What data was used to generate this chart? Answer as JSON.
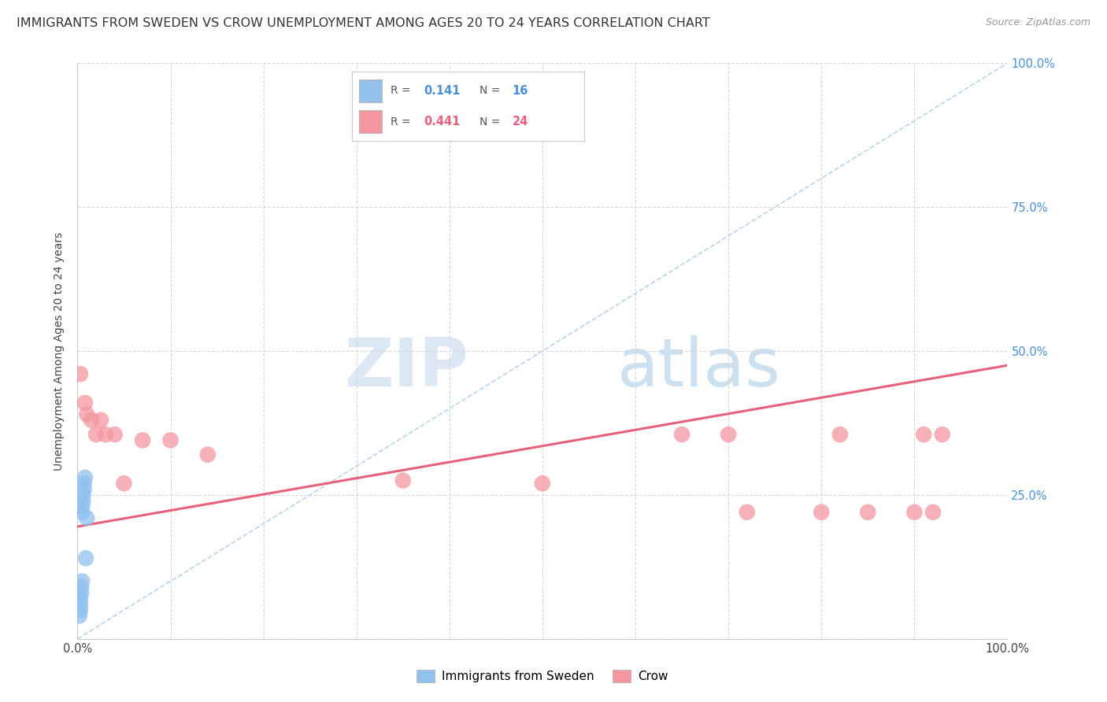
{
  "title": "IMMIGRANTS FROM SWEDEN VS CROW UNEMPLOYMENT AMONG AGES 20 TO 24 YEARS CORRELATION CHART",
  "source": "Source: ZipAtlas.com",
  "ylabel": "Unemployment Among Ages 20 to 24 years",
  "xlim": [
    0,
    1.0
  ],
  "ylim": [
    0,
    1.0
  ],
  "xtick_positions": [
    0.0,
    0.1,
    0.2,
    0.3,
    0.4,
    0.5,
    0.6,
    0.7,
    0.8,
    0.9,
    1.0
  ],
  "xticklabels": [
    "0.0%",
    "",
    "",
    "",
    "",
    "",
    "",
    "",
    "",
    "",
    "100.0%"
  ],
  "ytick_positions": [
    0.0,
    0.25,
    0.5,
    0.75,
    1.0
  ],
  "yticklabels_right": [
    "",
    "25.0%",
    "50.0%",
    "75.0%",
    "100.0%"
  ],
  "background_color": "#ffffff",
  "grid_color": "#d8d8d8",
  "watermark_zip": "ZIP",
  "watermark_atlas": "atlas",
  "blue_scatter_color": "#92C1EE",
  "pink_scatter_color": "#F496A0",
  "blue_line_color": "#4A90D9",
  "pink_line_color": "#E8607A",
  "blue_dashed_color": "#B8D4EE",
  "right_tick_color": "#4A90D9",
  "sweden_points_x": [
    0.002,
    0.003,
    0.003,
    0.003,
    0.004,
    0.004,
    0.005,
    0.005,
    0.005,
    0.006,
    0.006,
    0.007,
    0.007,
    0.008,
    0.009,
    0.01
  ],
  "sweden_points_y": [
    0.04,
    0.05,
    0.06,
    0.07,
    0.08,
    0.09,
    0.1,
    0.22,
    0.23,
    0.24,
    0.25,
    0.26,
    0.27,
    0.28,
    0.14,
    0.21
  ],
  "crow_points_x": [
    0.003,
    0.008,
    0.01,
    0.015,
    0.02,
    0.025,
    0.03,
    0.04,
    0.05,
    0.07,
    0.1,
    0.14,
    0.35,
    0.5,
    0.65,
    0.7,
    0.72,
    0.8,
    0.82,
    0.85,
    0.9,
    0.91,
    0.92,
    0.93
  ],
  "crow_points_y": [
    0.46,
    0.41,
    0.39,
    0.38,
    0.355,
    0.38,
    0.355,
    0.355,
    0.27,
    0.345,
    0.345,
    0.32,
    0.275,
    0.27,
    0.355,
    0.355,
    0.22,
    0.22,
    0.355,
    0.22,
    0.22,
    0.355,
    0.22,
    0.355
  ],
  "sweden_trend_x": [
    0.0,
    0.012
  ],
  "sweden_trend_y": [
    0.218,
    0.255
  ],
  "crow_trend_x": [
    0.0,
    1.0
  ],
  "crow_trend_y": [
    0.195,
    0.475
  ],
  "dashed_trend_x": [
    0.0,
    1.0
  ],
  "dashed_trend_y": [
    0.0,
    1.0
  ],
  "marker_size": 220,
  "title_fontsize": 11.5,
  "label_fontsize": 10,
  "tick_fontsize": 10.5,
  "legend_r1": "R = ",
  "legend_v1": "0.141",
  "legend_n1_label": "N = ",
  "legend_n1_val": "16",
  "legend_r2": "R = ",
  "legend_v2": "0.441",
  "legend_n2_label": "N = ",
  "legend_n2_val": "24"
}
